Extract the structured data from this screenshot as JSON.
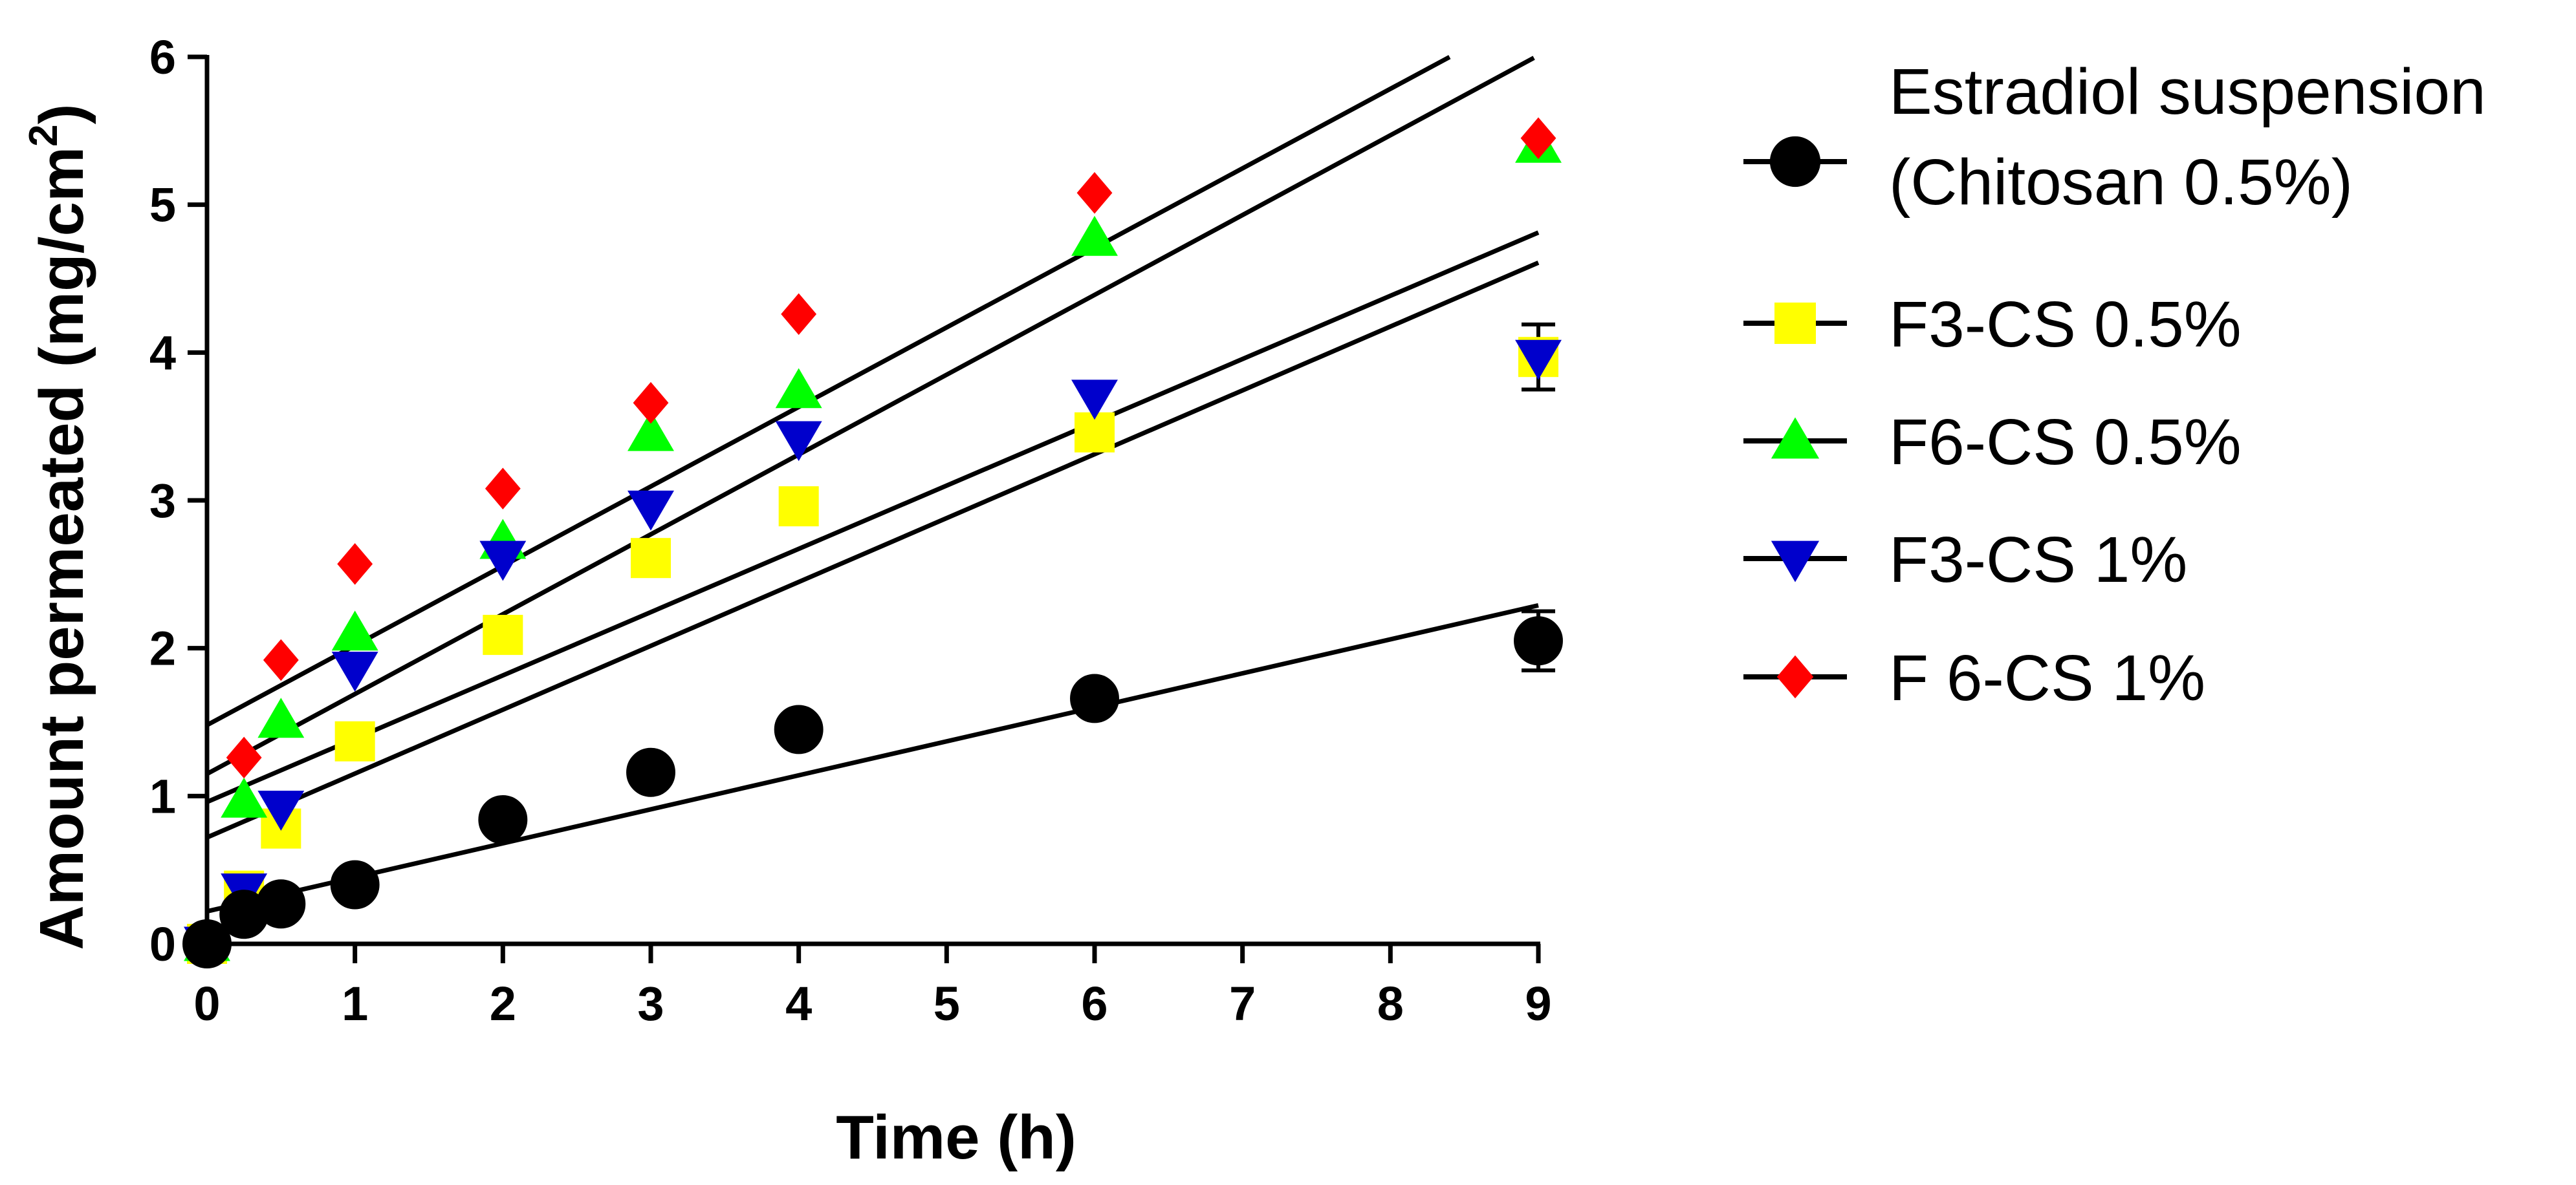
{
  "chart_data": {
    "type": "scatter",
    "xlabel": "Time (h)",
    "ylabel": "Amount permeated (mg/cm",
    "ylabel_sup": "2",
    "ylabel_close": ")",
    "xlim": [
      0,
      9
    ],
    "ylim": [
      0,
      6
    ],
    "xticks": [
      "0",
      "1",
      "2",
      "3",
      "4",
      "5",
      "6",
      "7",
      "8",
      "9"
    ],
    "yticks": [
      "0",
      "1",
      "2",
      "3",
      "4",
      "5",
      "6"
    ],
    "grid": false,
    "legend_position": "right",
    "x": [
      0,
      0.25,
      0.5,
      1,
      2,
      3,
      4,
      6,
      9
    ],
    "series": [
      {
        "name": "Estradiol suspension (Chitosan 0.5%)",
        "legend_lines": [
          "Estradiol suspension",
          "(Chitosan 0.5%)"
        ],
        "marker": "circle",
        "color": "#000000",
        "values": [
          0,
          0.2,
          0.27,
          0.4,
          0.84,
          1.16,
          1.45,
          1.66,
          2.05
        ],
        "error": [
          0,
          0,
          0,
          0,
          0,
          0,
          0,
          0,
          0.2
        ],
        "fit": {
          "intercept": 0.22,
          "slope": 0.23,
          "x_end": 9
        }
      },
      {
        "name": "F3-CS 0.5%",
        "legend_lines": [
          "F3-CS 0.5%"
        ],
        "marker": "square",
        "color": "#ffff00",
        "values": [
          0,
          0.36,
          0.78,
          1.37,
          2.09,
          2.61,
          2.96,
          3.46,
          3.97
        ],
        "error": [
          0,
          0,
          0,
          0,
          0,
          0,
          0,
          0,
          0.22
        ],
        "fit": {
          "intercept": 0.72,
          "slope": 0.432,
          "x_end": 9
        }
      },
      {
        "name": "F6-CS 0.5%",
        "legend_lines": [
          "F6-CS 0.5%"
        ],
        "marker": "triangle-up",
        "color": "#00ff00",
        "values": [
          0,
          0.97,
          1.51,
          2.1,
          2.72,
          3.45,
          3.74,
          4.77,
          5.4
        ],
        "error": [
          0,
          0,
          0,
          0,
          0,
          0,
          0,
          0,
          0
        ],
        "fit": {
          "intercept": 1.15,
          "slope": 0.54,
          "x_end": 8.97
        }
      },
      {
        "name": "F3-CS 1%",
        "legend_lines": [
          "F3-CS 1%"
        ],
        "marker": "triangle-down",
        "color": "#0000cc",
        "values": [
          0,
          0.36,
          0.92,
          1.86,
          2.61,
          2.95,
          3.42,
          3.7,
          3.97
        ],
        "error": [
          0,
          0,
          0,
          0,
          0,
          0,
          0,
          0,
          0
        ],
        "fit": {
          "intercept": 0.96,
          "slope": 0.428,
          "x_end": 9
        }
      },
      {
        "name": "F 6-CS 1%",
        "legend_lines": [
          "F 6-CS 1%"
        ],
        "marker": "diamond",
        "color": "#ff0000",
        "values": [
          0,
          1.26,
          1.92,
          2.57,
          3.08,
          3.66,
          4.26,
          5.08,
          5.45
        ],
        "error": [
          0,
          0,
          0,
          0,
          0,
          0,
          0,
          0,
          0
        ],
        "fit": {
          "intercept": 1.48,
          "slope": 0.538,
          "x_end": 8.4
        }
      }
    ]
  }
}
